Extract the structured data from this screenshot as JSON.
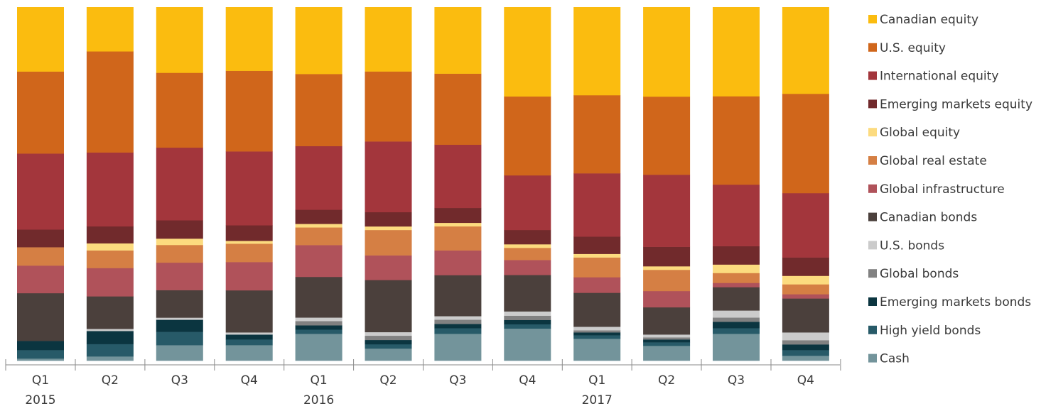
{
  "chart_data": {
    "type": "bar",
    "stacked": true,
    "normalized": true,
    "title": "",
    "xlabel": "",
    "ylabel": "",
    "ylim": [
      0,
      100
    ],
    "grid": false,
    "legend_position": "right",
    "categories": [
      {
        "quarter": "Q1",
        "year": "2015"
      },
      {
        "quarter": "Q2",
        "year": ""
      },
      {
        "quarter": "Q3",
        "year": ""
      },
      {
        "quarter": "Q4",
        "year": ""
      },
      {
        "quarter": "Q1",
        "year": "2016"
      },
      {
        "quarter": "Q2",
        "year": ""
      },
      {
        "quarter": "Q3",
        "year": ""
      },
      {
        "quarter": "Q4",
        "year": ""
      },
      {
        "quarter": "Q1",
        "year": "2017"
      },
      {
        "quarter": "Q2",
        "year": ""
      },
      {
        "quarter": "Q3",
        "year": ""
      },
      {
        "quarter": "Q4",
        "year": ""
      }
    ],
    "series": [
      {
        "name": "Cash",
        "color": "#73949b",
        "values": [
          0.6,
          1.2,
          4.4,
          4.4,
          7.6,
          3.4,
          7.6,
          9.0,
          6.2,
          4.2,
          7.6,
          1.4
        ]
      },
      {
        "name": "High yield bonds",
        "color": "#275a68",
        "values": [
          2.4,
          3.5,
          3.8,
          1.6,
          1.2,
          1.2,
          1.6,
          1.2,
          1.0,
          1.0,
          1.6,
          1.6
        ]
      },
      {
        "name": "Emerging markets bonds",
        "color": "#0b3540",
        "values": [
          2.6,
          3.7,
          3.4,
          1.4,
          1.2,
          1.2,
          1.2,
          1.2,
          0.8,
          0.8,
          1.8,
          1.6
        ]
      },
      {
        "name": "Global bonds",
        "color": "#818181",
        "values": [
          0,
          0,
          0,
          0,
          1.2,
          1.2,
          1.2,
          1.2,
          0.6,
          0.6,
          1.2,
          1.2
        ]
      },
      {
        "name": "U.S. bonds",
        "color": "#cbcbcb",
        "values": [
          0,
          0.6,
          0.6,
          0.6,
          1.0,
          1.0,
          1.0,
          1.2,
          1.0,
          0.8,
          2.0,
          2.2
        ]
      },
      {
        "name": "Canadian bonds",
        "color": "#4b403c",
        "values": [
          13.5,
          9.2,
          7.8,
          11.9,
          11.5,
          14.6,
          11.6,
          10.2,
          9.6,
          7.7,
          6.6,
          9.6
        ]
      },
      {
        "name": "Global infrastructure",
        "color": "#b0525a",
        "values": [
          7.8,
          8.0,
          7.8,
          8.0,
          9.0,
          6.9,
          7.0,
          4.2,
          4.4,
          4.6,
          1.2,
          1.2
        ]
      },
      {
        "name": "Global real estate",
        "color": "#d57f44",
        "values": [
          5.2,
          5.0,
          5.0,
          5.2,
          5.0,
          7.1,
          6.8,
          3.4,
          5.6,
          6.0,
          2.8,
          2.8
        ]
      },
      {
        "name": "Global equity",
        "color": "#fcdb7f",
        "values": [
          0,
          2.0,
          1.8,
          0.8,
          1.0,
          1.0,
          1.0,
          1.0,
          1.0,
          1.0,
          2.4,
          2.4
        ]
      },
      {
        "name": "Emerging markets equity",
        "color": "#712a2c",
        "values": [
          5.0,
          4.8,
          5.2,
          4.4,
          4.0,
          4.0,
          4.2,
          4.0,
          4.9,
          5.5,
          5.2,
          5.2
        ]
      },
      {
        "name": "International equity",
        "color": "#a3363c",
        "values": [
          21.5,
          20.9,
          20.6,
          20.9,
          18.0,
          19.8,
          17.9,
          15.3,
          17.9,
          20.4,
          17.4,
          18.2
        ]
      },
      {
        "name": "U.S. equity",
        "color": "#d0661b",
        "values": [
          23.2,
          28.6,
          21.2,
          22.8,
          20.4,
          19.6,
          20.1,
          22.1,
          22.1,
          22.1,
          25.0,
          28.1
        ]
      },
      {
        "name": "Canadian equity",
        "color": "#fbbc0f",
        "values": [
          18.2,
          12.5,
          18.6,
          18.0,
          18.9,
          18.0,
          18.8,
          25.0,
          24.9,
          25.3,
          25.2,
          24.5
        ]
      }
    ],
    "legend_order": [
      "Canadian equity",
      "U.S. equity",
      "International equity",
      "Emerging markets equity",
      "Global equity",
      "Global real estate",
      "Global infrastructure",
      "Canadian bonds",
      "U.S. bonds",
      "Global bonds",
      "Emerging markets bonds",
      "High yield bonds",
      "Cash"
    ]
  }
}
